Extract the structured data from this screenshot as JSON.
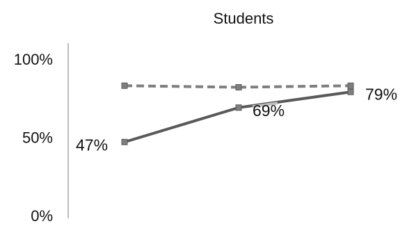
{
  "chart_data": {
    "type": "line",
    "title": "Students",
    "xlabel": "",
    "ylabel": "",
    "ylim": [
      0,
      1
    ],
    "y_ticks": [
      {
        "value": 0,
        "label": "0%"
      },
      {
        "value": 0.5,
        "label": "50%"
      },
      {
        "value": 1,
        "label": "100%"
      }
    ],
    "x": [
      1,
      2,
      3
    ],
    "grid": false,
    "legend": "none",
    "series": [
      {
        "values": [
          0.47,
          0.69,
          0.79
        ],
        "data_labels": [
          "47%",
          "69%",
          "79%"
        ],
        "line_style": "solid",
        "color": "#595959",
        "marker_color": "#7f7f7f"
      },
      {
        "values": [
          0.83,
          0.82,
          0.83
        ],
        "data_labels": [],
        "line_style": "dashed",
        "color": "#7f7f7f",
        "marker_color": "#7f7f7f"
      }
    ]
  }
}
